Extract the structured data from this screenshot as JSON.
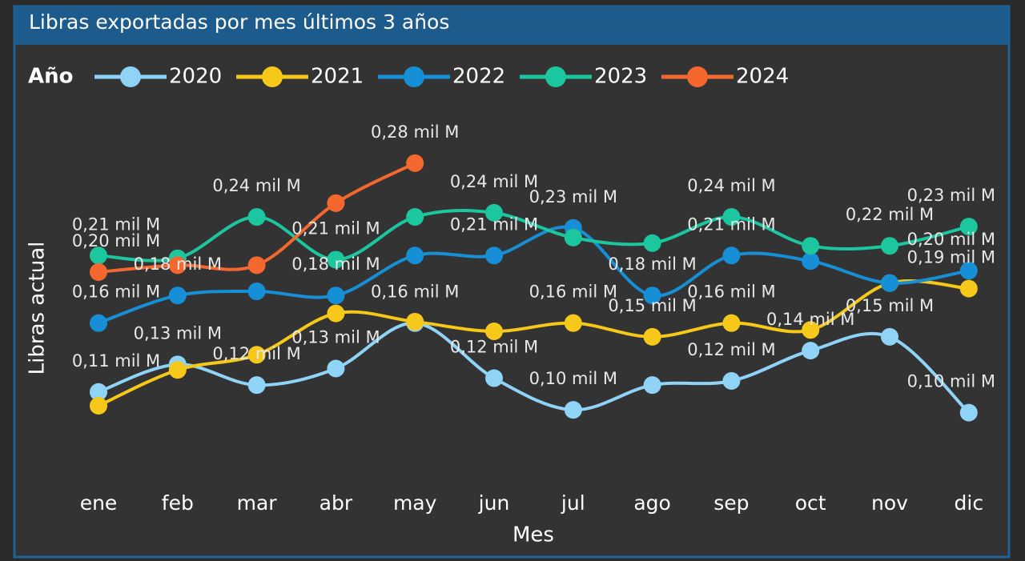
{
  "chart_data": {
    "type": "line",
    "title": "Libras exportadas por mes últimos 3 años",
    "legend_title": "Año",
    "x_label": "Mes",
    "y_label": "Libras actual",
    "categories": [
      "ene",
      "feb",
      "mar",
      "abr",
      "may",
      "jun",
      "jul",
      "ago",
      "sep",
      "oct",
      "nov",
      "dic"
    ],
    "ylim": [
      0.05,
      0.32
    ],
    "series": [
      {
        "name": "2020",
        "color": "#8fd3f7",
        "values": [
          0.114,
          0.134,
          0.119,
          0.131,
          0.164,
          0.124,
          0.101,
          0.119,
          0.122,
          0.144,
          0.154,
          0.099
        ],
        "value_labels": [
          "0,11 mil M",
          "0,13 mil M",
          "0,12 mil M",
          "0,13 mil M",
          "0,16 mil M",
          "0,12 mil M",
          "0,10 mil M",
          null,
          "0,12 mil M",
          "0,14 mil M",
          "0,15 mil M",
          "0,10 mil M"
        ]
      },
      {
        "name": "2021",
        "color": "#f6c819",
        "values": [
          0.104,
          0.13,
          0.141,
          0.171,
          0.165,
          0.158,
          0.164,
          0.154,
          0.164,
          0.159,
          0.193,
          0.189
        ],
        "value_labels": [
          null,
          null,
          null,
          null,
          null,
          null,
          "0,16 mil M",
          "0,15 mil M",
          "0,16 mil M",
          null,
          null,
          "0,19 mil M"
        ]
      },
      {
        "name": "2022",
        "color": "#168fd6",
        "values": [
          0.164,
          0.184,
          0.187,
          0.184,
          0.213,
          0.213,
          0.233,
          0.184,
          0.213,
          0.209,
          0.193,
          0.202
        ],
        "value_labels": [
          "0,16 mil M",
          "0,18 mil M",
          null,
          "0,18 mil M",
          null,
          "0,21 mil M",
          "0,23 mil M",
          "0,18 mil M",
          "0,21 mil M",
          null,
          null,
          "0,20 mil M"
        ]
      },
      {
        "name": "2023",
        "color": "#1cc69e",
        "values": [
          0.213,
          0.211,
          0.241,
          0.21,
          0.241,
          0.244,
          0.226,
          0.222,
          0.241,
          0.22,
          0.22,
          0.234
        ],
        "value_labels": [
          "0,21 mil M",
          null,
          "0,24 mil M",
          "0,21 mil M",
          null,
          "0,24 mil M",
          null,
          null,
          "0,24 mil M",
          null,
          "0,22 mil M",
          "0,23 mil M"
        ]
      },
      {
        "name": "2024",
        "color": "#f4682f",
        "values": [
          0.201,
          0.206,
          0.206,
          0.251,
          0.28,
          null,
          null,
          null,
          null,
          null,
          null,
          null
        ],
        "value_labels": [
          "0,20 mil M",
          null,
          null,
          null,
          "0,28 mil M",
          null,
          null,
          null,
          null,
          null,
          null,
          null
        ]
      }
    ]
  }
}
